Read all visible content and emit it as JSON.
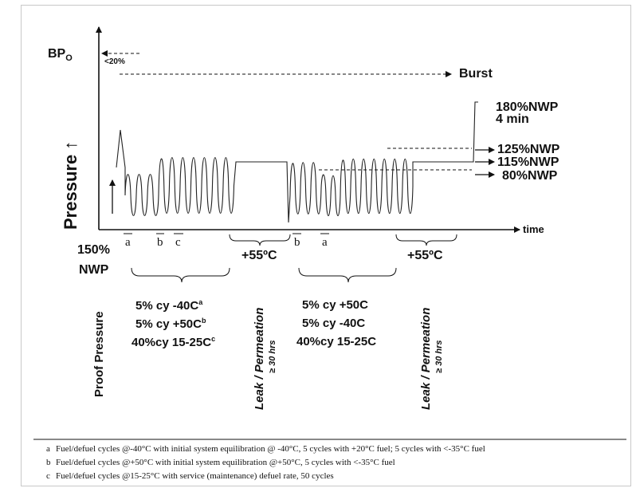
{
  "axis": {
    "y_label": "Pressure",
    "x_label": "time",
    "y_arrow_glyph": "↑"
  },
  "markers": {
    "bpo_main": "BP",
    "bpo_sub": "O",
    "lt20": "<20%",
    "burst": "Burst",
    "nwp180": "180%NWP",
    "min4": "4 min",
    "nwp125": "125%NWP",
    "nwp115": "115%NWP",
    "nwp80": "80%NWP",
    "nwp150_a": "150%",
    "nwp150_b": "NWP",
    "proof_pressure": "Proof Pressure"
  },
  "segments": {
    "seg_a1": "a",
    "seg_b1": "b",
    "seg_c1": "c",
    "seg_b2": "b",
    "seg_a2": "a",
    "temp1": "+55ºC",
    "temp2": "+55ºC"
  },
  "group1": {
    "line1": "5% cy  -40C",
    "line1_sup": "a",
    "line2": "5% cy  +50C",
    "line2_sup": "b",
    "line3": "40%cy 15-25C",
    "line3_sup": "c"
  },
  "group2": {
    "line1": "5% cy +50C",
    "line2": "5% cy  -40C",
    "line3": "40%cy 15-25C"
  },
  "leak": {
    "label": "Leak / Permeation",
    "duration": "≥ 30 hrs"
  },
  "footnotes": [
    {
      "key": "a",
      "text": "Fuel/defuel cycles @-40°C with initial system equilibration @ -40°C, 5 cycles with +20°C fuel; 5 cycles with <-35°C fuel"
    },
    {
      "key": "b",
      "text": "Fuel/defuel cycles @+50°C with initial system equilibration @+50°C, 5 cycles with <-35°C fuel"
    },
    {
      "key": "c",
      "text": "Fuel/defuel cycles @15-25°C with service (maintenance) defuel rate, 50 cycles"
    }
  ]
}
